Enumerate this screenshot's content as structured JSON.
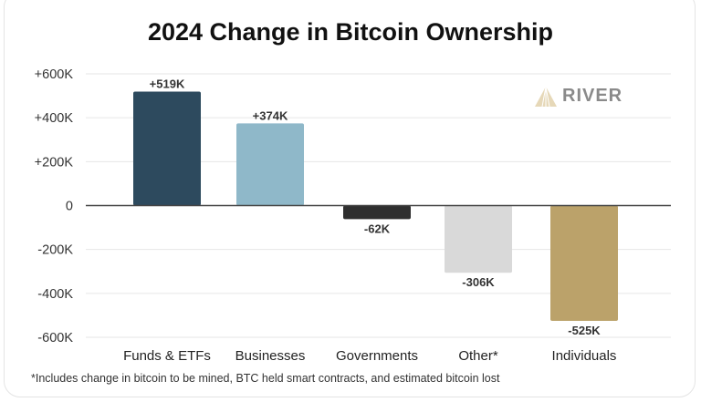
{
  "chart_data": {
    "type": "bar",
    "title": "2024 Change in Bitcoin Ownership",
    "categories": [
      "Funds & ETFs",
      "Businesses",
      "Governments",
      "Other*",
      "Individuals"
    ],
    "values": [
      519000,
      374000,
      -62000,
      -306000,
      -525000
    ],
    "data_labels": [
      "+519K",
      "+374K",
      "-62K",
      "-306K",
      "-525K"
    ],
    "colors": [
      "#2d4a5e",
      "#8fb8c9",
      "#2f2f2f",
      "#d9d9d9",
      "#bba26a"
    ],
    "ylim": [
      -600000,
      600000
    ],
    "yticks": [
      600000,
      400000,
      200000,
      0,
      -200000,
      -400000,
      -600000
    ],
    "ytick_labels": [
      "+600K",
      "+400K",
      "+200K",
      "0",
      "-200K",
      "-400K",
      "-600K"
    ],
    "grid": true,
    "xlabel": "",
    "ylabel": "",
    "footnote": "*Includes change in bitcoin to be mined, BTC held smart contracts, and estimated bitcoin lost"
  },
  "logo": {
    "text": "RIVER"
  }
}
